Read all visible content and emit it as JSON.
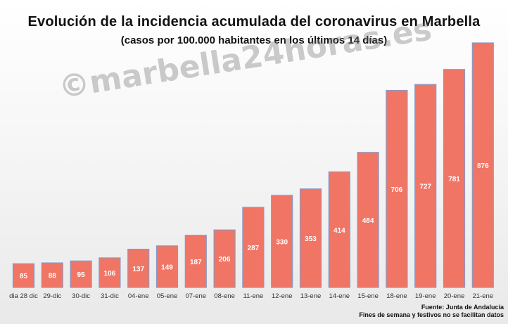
{
  "chart_data": {
    "type": "bar",
    "title": "Evolución de la incidencia acumulada del coronavirus en Marbella",
    "subtitle": "(casos por 100.000 habitantes en los últimos 14 días)",
    "categories": [
      "dia 28 dic",
      "29-dic",
      "30-dic",
      "31-dic",
      "04-ene",
      "05-ene",
      "07-ene",
      "08-ene",
      "11-ene",
      "12-ene",
      "13-ene",
      "14-ene",
      "15-ene",
      "18-ene",
      "19-ene",
      "20-ene",
      "21-ene"
    ],
    "values": [
      85,
      88,
      95,
      106,
      137,
      149,
      187,
      206,
      287,
      330,
      353,
      414,
      484,
      706,
      727,
      781,
      876
    ],
    "ylim": [
      0,
      900
    ],
    "grid": false,
    "colors": {
      "bar_fill": "#f07565",
      "bar_edge": "#8a9ac6",
      "label": "#ffffff"
    }
  },
  "watermark": "©marbella24horas.es",
  "footer": {
    "source": "Fuente: Junta de Andalucía",
    "note": "Fines de semana y festivos no se facilitan datos"
  }
}
